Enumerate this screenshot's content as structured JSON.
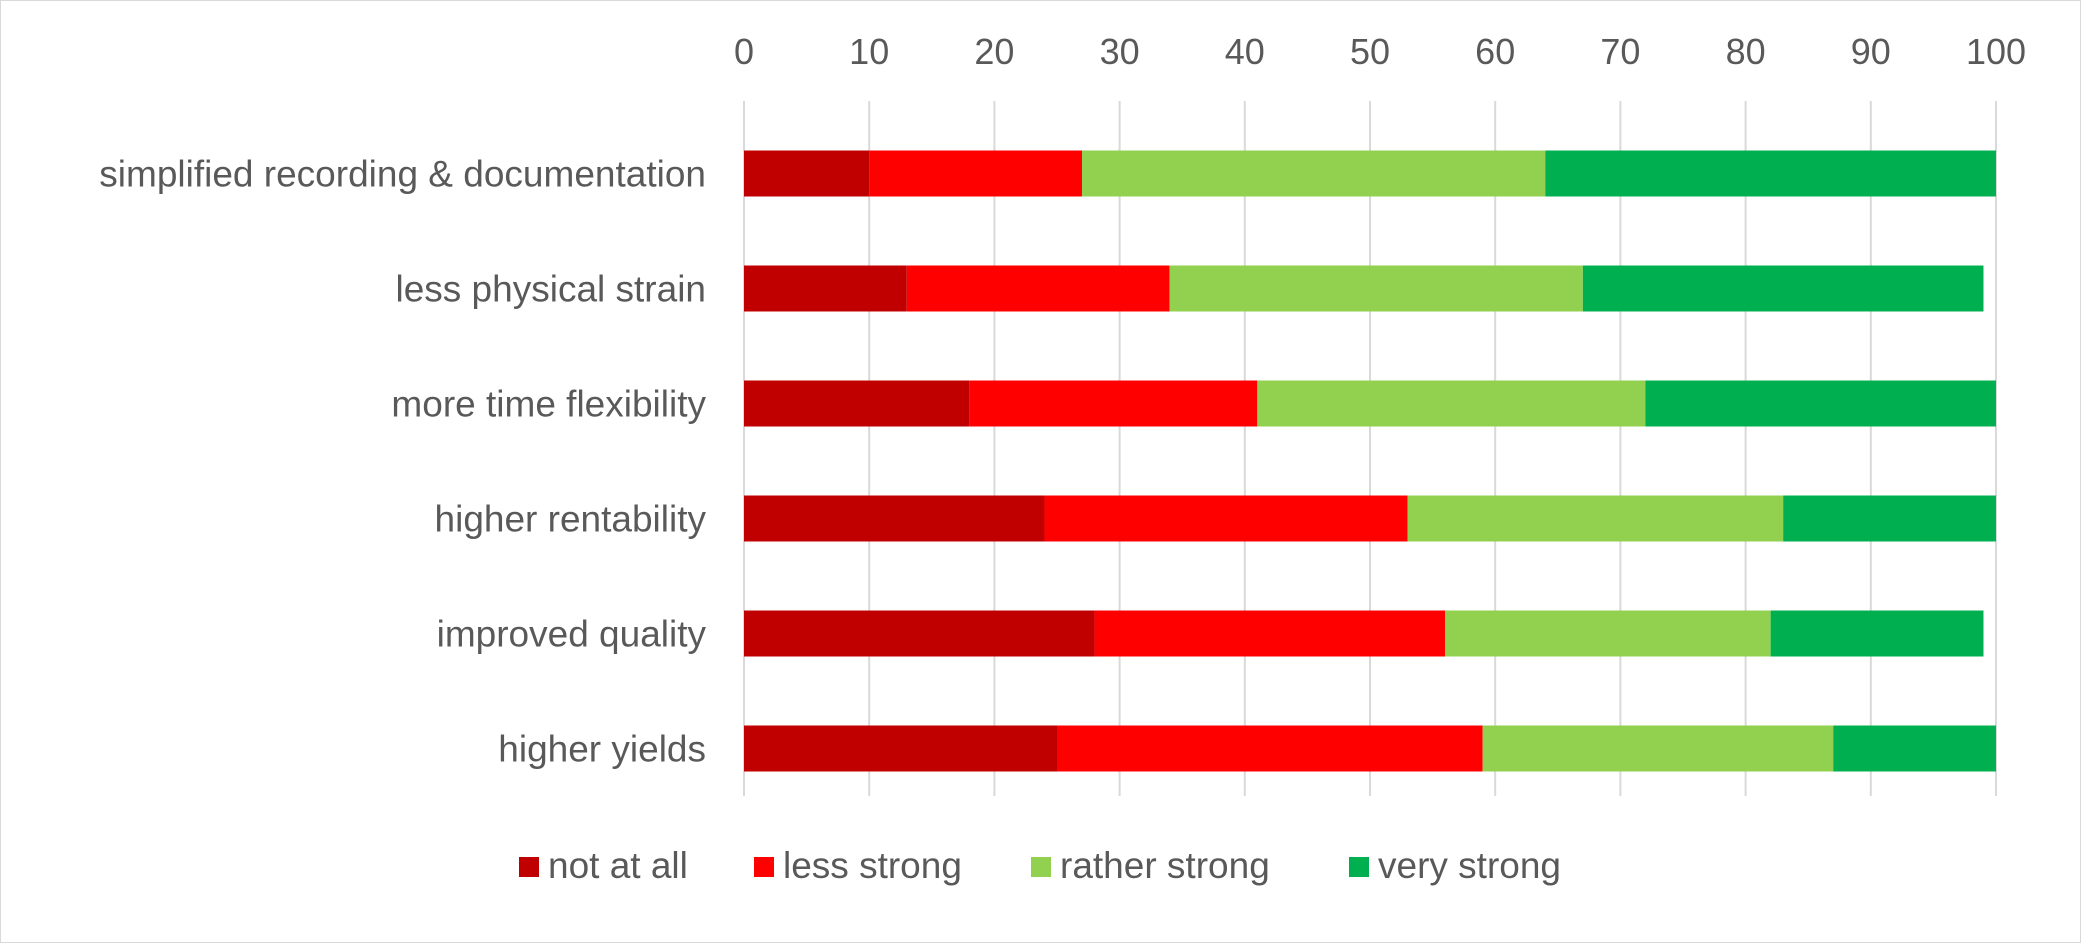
{
  "chart_data": {
    "type": "bar",
    "orientation": "horizontal",
    "stacked": true,
    "categories": [
      "simplified recording & documentation",
      "less physical strain",
      "more time flexibility",
      "higher rentability",
      "improved quality",
      "higher yields"
    ],
    "series": [
      {
        "name": "not at all",
        "color": "#c00000",
        "values": [
          10,
          13,
          18,
          24,
          28,
          25
        ]
      },
      {
        "name": "less strong",
        "color": "#ff0000",
        "values": [
          17,
          21,
          23,
          29,
          28,
          34
        ]
      },
      {
        "name": "rather strong",
        "color": "#92d050",
        "values": [
          37,
          33,
          31,
          30,
          26,
          28
        ]
      },
      {
        "name": "very strong",
        "color": "#00b050",
        "values": [
          36,
          32,
          28,
          17,
          17,
          13
        ]
      }
    ],
    "xlim": [
      0,
      100
    ],
    "xticks": [
      0,
      10,
      20,
      30,
      40,
      50,
      60,
      70,
      80,
      90,
      100
    ],
    "x_axis_position": "top",
    "grid": "vertical",
    "legend_position": "bottom",
    "title": "",
    "xlabel": "",
    "ylabel": ""
  }
}
